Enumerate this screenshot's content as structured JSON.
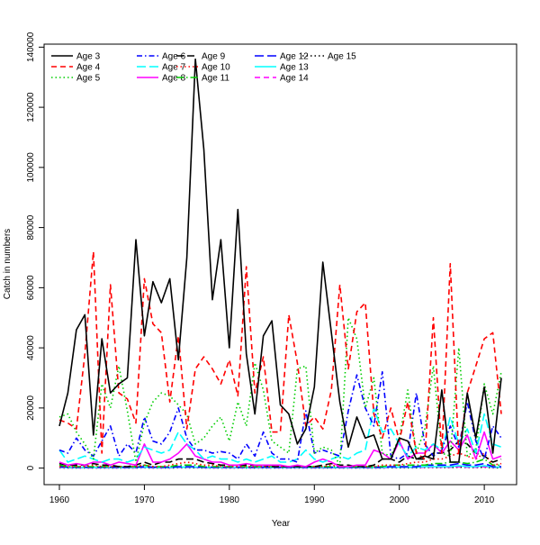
{
  "chart_data": {
    "type": "line",
    "title": "",
    "xlabel": "Year",
    "ylabel": "Catch in numbers",
    "xlim": [
      1958.2,
      2013.8
    ],
    "ylim": [
      -5500,
      141000
    ],
    "xticks": [
      1960,
      1970,
      1980,
      1990,
      2000,
      2010
    ],
    "yticks": [
      0,
      20000,
      40000,
      60000,
      80000,
      100000,
      120000,
      140000
    ],
    "grid": false,
    "legend_position": "top-left",
    "x": [
      1960,
      1961,
      1962,
      1963,
      1964,
      1965,
      1966,
      1967,
      1968,
      1969,
      1970,
      1971,
      1972,
      1973,
      1974,
      1975,
      1976,
      1977,
      1978,
      1979,
      1980,
      1981,
      1982,
      1983,
      1984,
      1985,
      1986,
      1987,
      1988,
      1989,
      1990,
      1991,
      1992,
      1993,
      1994,
      1995,
      1996,
      1997,
      1998,
      1999,
      2000,
      2001,
      2002,
      2003,
      2004,
      2005,
      2006,
      2007,
      2008,
      2009,
      2010,
      2011,
      2012
    ],
    "series": [
      {
        "name": "Age 3",
        "color": "#000000",
        "dash": "solid",
        "values": [
          14000,
          25000,
          46000,
          51000,
          11000,
          43000,
          25000,
          28000,
          30000,
          76000,
          44000,
          62000,
          55000,
          63000,
          36000,
          70000,
          136000,
          106000,
          56000,
          76000,
          40000,
          86000,
          38000,
          18000,
          44000,
          49000,
          21000,
          18000,
          8000,
          13000,
          27000,
          68500,
          45000,
          22000,
          7000,
          17000,
          10000,
          11000,
          3000,
          3000,
          10000,
          9000,
          3000,
          4000,
          3000,
          26000,
          2000,
          2000,
          25000,
          10000,
          27000,
          5000,
          30000
        ]
      },
      {
        "name": "Age 4",
        "color": "#ff0000",
        "dash": "6,4",
        "values": [
          16000,
          15000,
          13000,
          38000,
          72000,
          5000,
          61000,
          25000,
          23000,
          15000,
          63000,
          48000,
          45000,
          22000,
          44000,
          13000,
          33000,
          37000,
          33000,
          28000,
          36000,
          24000,
          67000,
          25000,
          37000,
          12000,
          12000,
          51000,
          35000,
          14000,
          17000,
          13000,
          26000,
          61000,
          33000,
          52000,
          55000,
          18000,
          10000,
          20000,
          9000,
          22000,
          5000,
          3000,
          50000,
          5000,
          68000,
          4000,
          25000,
          34000,
          43000,
          45000,
          18000
        ]
      },
      {
        "name": "Age 5",
        "color": "#00cd00",
        "dash": "1.5,3",
        "values": [
          17000,
          18000,
          12000,
          8000,
          3000,
          28000,
          20000,
          34000,
          19000,
          2000,
          15000,
          22000,
          25000,
          24000,
          21000,
          18000,
          8000,
          10000,
          14000,
          17000,
          9000,
          22000,
          14000,
          35000,
          26000,
          9000,
          7000,
          5000,
          33000,
          34000,
          5000,
          7000,
          6000,
          1000,
          50000,
          43000,
          20000,
          30000,
          5000,
          4000,
          10000,
          26000,
          5000,
          13000,
          34000,
          5000,
          4000,
          40000,
          4000,
          6000,
          28000,
          18000,
          32000
        ]
      },
      {
        "name": "Age 6",
        "color": "#0000ff",
        "dash": "6,3,1.5,3",
        "values": [
          6000,
          5000,
          10000,
          6000,
          4000,
          9000,
          14000,
          4000,
          8000,
          5000,
          17000,
          9000,
          8000,
          12000,
          20000,
          10000,
          6000,
          6000,
          5000,
          5500,
          5000,
          3000,
          8000,
          4000,
          12000,
          5000,
          3000,
          3000,
          2000,
          19000,
          5000,
          6000,
          5000,
          4000,
          19000,
          31000,
          20000,
          14000,
          32000,
          4000,
          3000,
          5000,
          25000,
          8000,
          4000,
          6000,
          14000,
          7000,
          22000,
          9000,
          3000,
          14000,
          10000
        ]
      },
      {
        "name": "Age 7",
        "color": "#00ffff",
        "dash": "10,4",
        "values": [
          6000,
          2000,
          3000,
          4000,
          3000,
          2000,
          3000,
          3000,
          2000,
          3000,
          7000,
          6000,
          5000,
          6000,
          12000,
          8000,
          6000,
          3000,
          4000,
          3000,
          3000,
          2000,
          3000,
          2000,
          3000,
          4000,
          2000,
          2000,
          3000,
          6000,
          3000,
          2000,
          3000,
          4000,
          3000,
          5000,
          6000,
          20000,
          12000,
          13000,
          8000,
          4000,
          7000,
          6000,
          8000,
          6000,
          17000,
          8000,
          13000,
          5000,
          18000,
          8000,
          7000
        ]
      },
      {
        "name": "Age 8",
        "color": "#ff00ff",
        "dash": "solid",
        "values": [
          2000,
          1000,
          1500,
          1000,
          2000,
          2000,
          1000,
          2000,
          1500,
          1000,
          8000,
          2000,
          2000,
          3000,
          5000,
          8000,
          4000,
          3000,
          2000,
          2000,
          1000,
          1000,
          1500,
          1000,
          1000,
          1000,
          1000,
          500,
          1000,
          500,
          2000,
          3000,
          2000,
          500,
          500,
          1000,
          1000,
          6000,
          5000,
          3000,
          9000,
          3000,
          5000,
          5000,
          8000,
          5000,
          9000,
          6000,
          11000,
          3000,
          12000,
          3000,
          4000
        ]
      },
      {
        "name": "Age 9",
        "color": "#000000",
        "dash": "8,4",
        "values": [
          1500,
          1000,
          1000,
          1000,
          1500,
          1000,
          1000,
          500,
          500,
          1000,
          2000,
          1000,
          2000,
          2000,
          3000,
          3000,
          3000,
          2000,
          1500,
          1000,
          1000,
          1000,
          1000,
          1000,
          1000,
          500,
          500,
          500,
          500,
          500,
          500,
          1000,
          1500,
          1000,
          1000,
          500,
          500,
          1000,
          3000,
          3000,
          2000,
          4000,
          3000,
          3000,
          5000,
          5000,
          6000,
          9000,
          8000,
          5000,
          4000,
          2000,
          3000
        ]
      },
      {
        "name": "Age 10",
        "color": "#ff0000",
        "dash": "1.5,3",
        "values": [
          500,
          500,
          500,
          500,
          1000,
          500,
          500,
          500,
          500,
          500,
          1000,
          500,
          500,
          1000,
          1500,
          2000,
          1500,
          1000,
          1000,
          500,
          500,
          500,
          500,
          500,
          500,
          500,
          500,
          500,
          500,
          500,
          500,
          500,
          1000,
          500,
          500,
          500,
          500,
          500,
          1000,
          1000,
          1000,
          1500,
          2000,
          2000,
          3000,
          3000,
          4000,
          5000,
          4000,
          3000,
          5000,
          1000,
          1500
        ]
      },
      {
        "name": "Age 11",
        "color": "#00cd00",
        "dash": "8,3,1.5,3",
        "values": [
          1000,
          500,
          500,
          500,
          500,
          500,
          500,
          500,
          500,
          500,
          1000,
          500,
          500,
          500,
          1000,
          1000,
          1000,
          500,
          500,
          500,
          500,
          500,
          500,
          500,
          500,
          500,
          500,
          500,
          500,
          500,
          500,
          500,
          500,
          500,
          500,
          500,
          500,
          500,
          500,
          1000,
          1000,
          1000,
          1000,
          1000,
          1500,
          1500,
          2000,
          2000,
          1500,
          2000,
          3000,
          1000,
          1000
        ]
      },
      {
        "name": "Age 12",
        "color": "#0000ff",
        "dash": "10,4",
        "values": [
          500,
          300,
          300,
          300,
          300,
          300,
          300,
          300,
          300,
          300,
          500,
          300,
          300,
          300,
          500,
          500,
          500,
          300,
          300,
          300,
          300,
          300,
          300,
          300,
          300,
          300,
          300,
          300,
          300,
          300,
          300,
          300,
          300,
          300,
          300,
          300,
          300,
          300,
          300,
          500,
          500,
          500,
          500,
          1000,
          1000,
          1000,
          1000,
          1500,
          1000,
          1000,
          1500,
          500,
          500
        ]
      },
      {
        "name": "Age 13",
        "color": "#00ffff",
        "dash": "solid",
        "values": [
          300,
          200,
          200,
          200,
          200,
          200,
          200,
          200,
          200,
          200,
          300,
          200,
          200,
          200,
          300,
          300,
          300,
          200,
          200,
          200,
          200,
          200,
          200,
          200,
          200,
          200,
          200,
          200,
          200,
          200,
          200,
          200,
          200,
          200,
          200,
          200,
          200,
          200,
          200,
          300,
          300,
          300,
          300,
          500,
          500,
          500,
          500,
          800,
          500,
          500,
          800,
          300,
          300
        ]
      },
      {
        "name": "Age 14",
        "color": "#ff00ff",
        "dash": "6,4",
        "values": [
          200,
          100,
          100,
          100,
          100,
          100,
          100,
          100,
          100,
          100,
          200,
          100,
          100,
          100,
          200,
          200,
          200,
          100,
          100,
          100,
          100,
          100,
          100,
          100,
          100,
          100,
          100,
          100,
          100,
          100,
          100,
          100,
          100,
          100,
          100,
          100,
          100,
          100,
          100,
          200,
          200,
          200,
          200,
          300,
          300,
          300,
          300,
          500,
          300,
          300,
          500,
          200,
          200
        ]
      },
      {
        "name": "Age 15",
        "color": "#000000",
        "dash": "1.5,3",
        "values": [
          100,
          50,
          50,
          50,
          50,
          50,
          50,
          50,
          50,
          50,
          100,
          50,
          50,
          50,
          100,
          100,
          100,
          50,
          50,
          50,
          50,
          50,
          50,
          50,
          50,
          50,
          50,
          50,
          50,
          50,
          50,
          50,
          50,
          50,
          50,
          50,
          50,
          50,
          50,
          100,
          100,
          100,
          100,
          200,
          200,
          200,
          200,
          300,
          200,
          200,
          300,
          100,
          100
        ]
      }
    ]
  }
}
